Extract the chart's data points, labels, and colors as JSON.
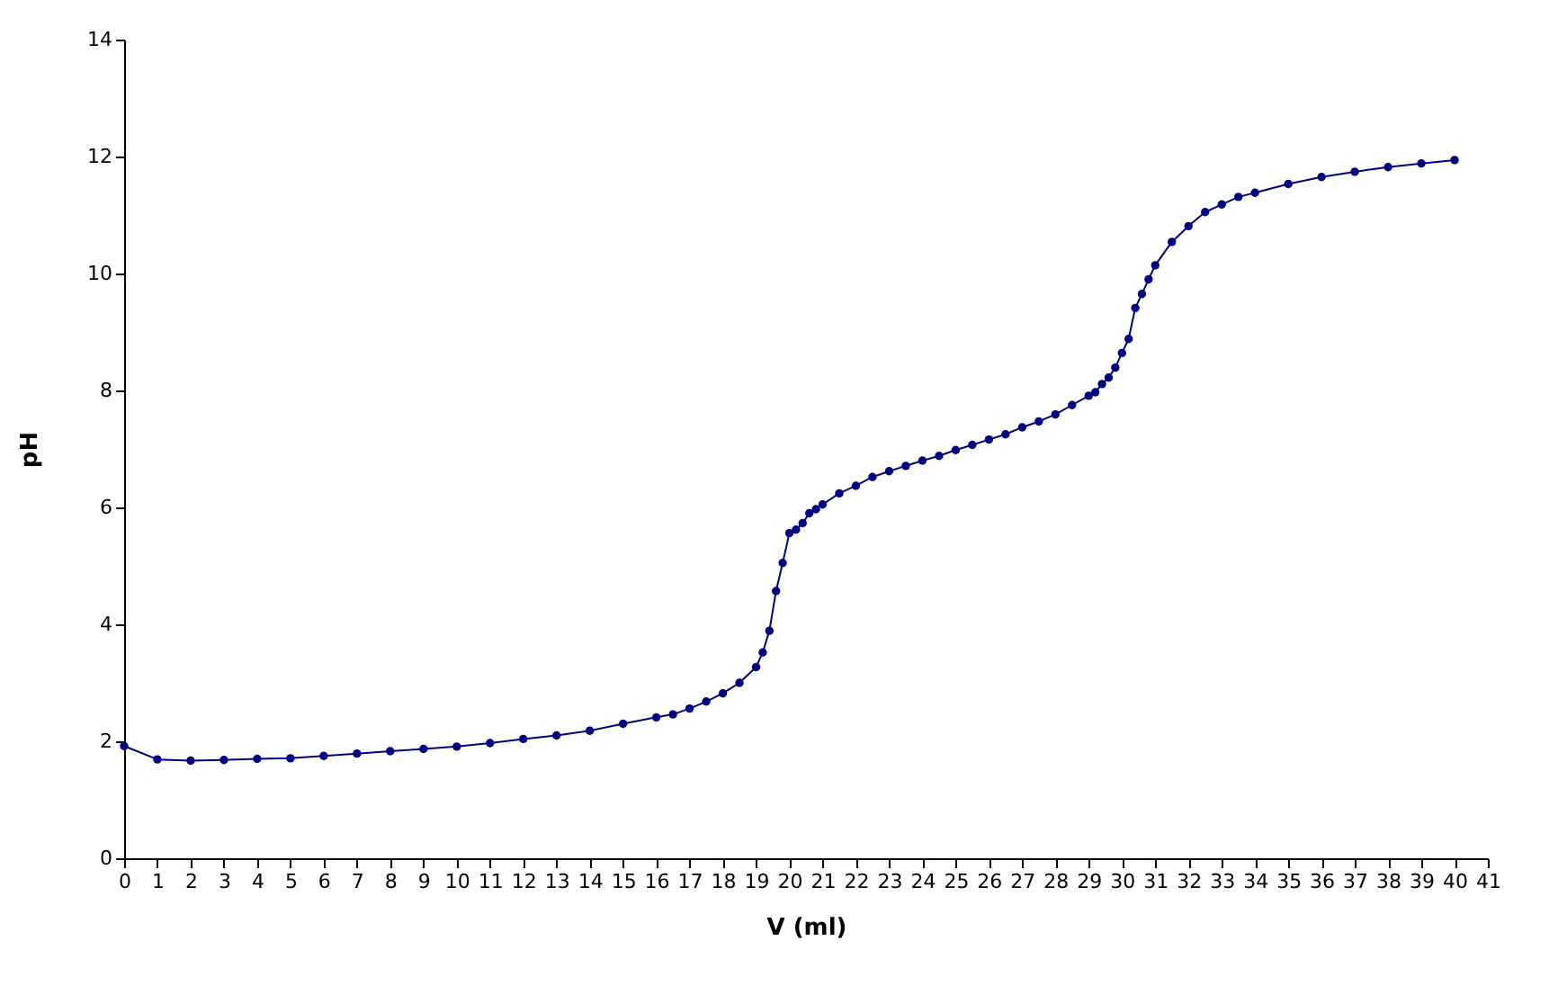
{
  "chart_data": {
    "type": "line",
    "xlabel": "V (ml)",
    "ylabel": "pH",
    "x": [
      0,
      1,
      2,
      3,
      4,
      5,
      6,
      7,
      8,
      9,
      10,
      11,
      12,
      13,
      14,
      15,
      16,
      16.5,
      17,
      17.5,
      18,
      18.5,
      19,
      19.2,
      19.4,
      19.6,
      19.8,
      20,
      20.2,
      20.4,
      20.6,
      20.8,
      21,
      21.5,
      22,
      22.5,
      23,
      23.5,
      24,
      24.5,
      25,
      25.5,
      26,
      26.5,
      27,
      27.5,
      28,
      28.5,
      29,
      29.2,
      29.4,
      29.6,
      29.8,
      30,
      30.2,
      30.4,
      30.6,
      30.8,
      31,
      31.5,
      32,
      32.5,
      33,
      33.5,
      34,
      35,
      36,
      37,
      38,
      39,
      40
    ],
    "series": [
      {
        "color": "#000080",
        "values": [
          1.92,
          1.69,
          1.67,
          1.68,
          1.7,
          1.71,
          1.75,
          1.79,
          1.83,
          1.87,
          1.91,
          1.97,
          2.04,
          2.1,
          2.18,
          2.3,
          2.41,
          2.46,
          2.56,
          2.68,
          2.82,
          3.0,
          3.27,
          3.52,
          3.89,
          4.57,
          5.05,
          5.56,
          5.62,
          5.73,
          5.9,
          5.97,
          6.05,
          6.24,
          6.37,
          6.52,
          6.62,
          6.71,
          6.8,
          6.88,
          6.98,
          7.07,
          7.16,
          7.25,
          7.37,
          7.47,
          7.59,
          7.75,
          7.91,
          7.97,
          8.11,
          8.22,
          8.39,
          8.64,
          8.88,
          9.41,
          9.65,
          9.9,
          10.14,
          10.54,
          10.81,
          11.05,
          11.18,
          11.31,
          11.38,
          11.53,
          11.65,
          11.74,
          11.82,
          11.88,
          11.94
        ]
      }
    ],
    "xlim": [
      0,
      41
    ],
    "xticks": [
      0,
      1,
      2,
      3,
      4,
      5,
      6,
      7,
      8,
      9,
      10,
      11,
      12,
      13,
      14,
      15,
      16,
      17,
      18,
      19,
      20,
      21,
      22,
      23,
      24,
      25,
      26,
      27,
      28,
      29,
      30,
      31,
      32,
      33,
      34,
      35,
      36,
      37,
      38,
      39,
      40,
      41
    ],
    "ylim": [
      0,
      14
    ],
    "yticks": [
      0,
      2,
      4,
      6,
      8,
      10,
      12,
      14
    ],
    "grid": false,
    "legend": false,
    "marker": "circle",
    "line_style": "solid"
  }
}
